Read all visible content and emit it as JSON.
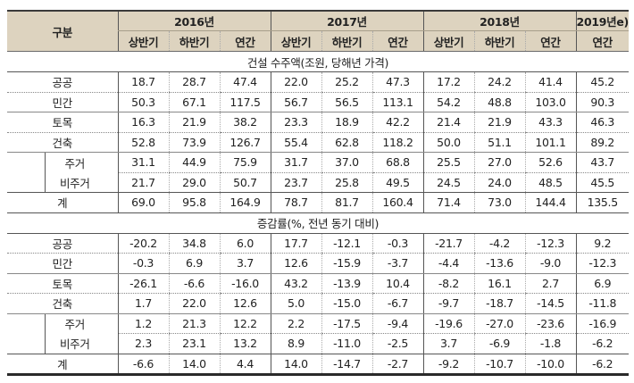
{
  "table": {
    "header": {
      "category_label": "구분",
      "years": [
        {
          "label": "2016년",
          "span": 3
        },
        {
          "label": "2017년",
          "span": 3
        },
        {
          "label": "2018년",
          "span": 3
        },
        {
          "label": "2019년e)",
          "span": 1
        }
      ],
      "periods": [
        "상반기",
        "하반기",
        "연간",
        "상반기",
        "하반기",
        "연간",
        "상반기",
        "하반기",
        "연간",
        "연간"
      ]
    },
    "sections": [
      {
        "title": "건설 수주액(조원, 당해년 가격)",
        "rows": [
          {
            "label": "공공",
            "values": [
              "18.7",
              "28.7",
              "47.4",
              "22.0",
              "25.2",
              "47.3",
              "17.2",
              "24.2",
              "41.4",
              "45.2"
            ]
          },
          {
            "label": "민간",
            "values": [
              "50.3",
              "67.1",
              "117.5",
              "56.7",
              "56.5",
              "113.1",
              "54.2",
              "48.8",
              "103.0",
              "90.3"
            ]
          },
          {
            "label": "토목",
            "values": [
              "16.3",
              "21.9",
              "38.2",
              "23.3",
              "18.9",
              "42.2",
              "21.4",
              "21.9",
              "43.3",
              "46.3"
            ]
          },
          {
            "label": "건축",
            "values": [
              "52.8",
              "73.9",
              "126.7",
              "55.4",
              "62.8",
              "118.2",
              "50.0",
              "51.1",
              "101.1",
              "89.2"
            ]
          },
          {
            "label": "주거",
            "values": [
              "31.1",
              "44.9",
              "75.9",
              "31.7",
              "37.0",
              "68.8",
              "25.5",
              "27.0",
              "52.6",
              "43.7"
            ]
          },
          {
            "label": "비주거",
            "values": [
              "21.7",
              "29.0",
              "50.7",
              "23.7",
              "25.8",
              "49.5",
              "24.5",
              "24.0",
              "48.5",
              "45.5"
            ]
          },
          {
            "label": "계",
            "values": [
              "69.0",
              "95.8",
              "164.9",
              "78.7",
              "81.7",
              "160.4",
              "71.4",
              "73.0",
              "144.4",
              "135.5"
            ]
          }
        ]
      },
      {
        "title": "증감률(%, 전년 동기 대비)",
        "rows": [
          {
            "label": "공공",
            "values": [
              "-20.2",
              "34.8",
              "6.0",
              "17.7",
              "-12.1",
              "-0.3",
              "-21.7",
              "-4.2",
              "-12.3",
              "9.2"
            ]
          },
          {
            "label": "민간",
            "values": [
              "-0.3",
              "6.9",
              "3.7",
              "12.6",
              "-15.9",
              "-3.7",
              "-4.4",
              "-13.6",
              "-9.0",
              "-12.3"
            ]
          },
          {
            "label": "토목",
            "values": [
              "-26.1",
              "-6.6",
              "-16.0",
              "43.2",
              "-13.9",
              "10.4",
              "-8.2",
              "16.1",
              "2.7",
              "6.9"
            ]
          },
          {
            "label": "건축",
            "values": [
              "1.7",
              "22.0",
              "12.6",
              "5.0",
              "-15.0",
              "-6.7",
              "-9.7",
              "-18.7",
              "-14.5",
              "-11.8"
            ]
          },
          {
            "label": "주거",
            "values": [
              "1.2",
              "21.3",
              "12.2",
              "2.2",
              "-17.5",
              "-9.4",
              "-19.6",
              "-27.0",
              "-23.6",
              "-16.9"
            ]
          },
          {
            "label": "비주거",
            "values": [
              "2.3",
              "23.1",
              "13.2",
              "8.9",
              "-11.0",
              "-2.5",
              "3.7",
              "-6.9",
              "-1.8",
              "-6.2"
            ]
          },
          {
            "label": "계",
            "values": [
              "-6.6",
              "14.0",
              "4.4",
              "14.0",
              "-14.7",
              "-2.7",
              "-9.2",
              "-10.7",
              "-10.0",
              "-6.2"
            ]
          }
        ]
      }
    ]
  }
}
